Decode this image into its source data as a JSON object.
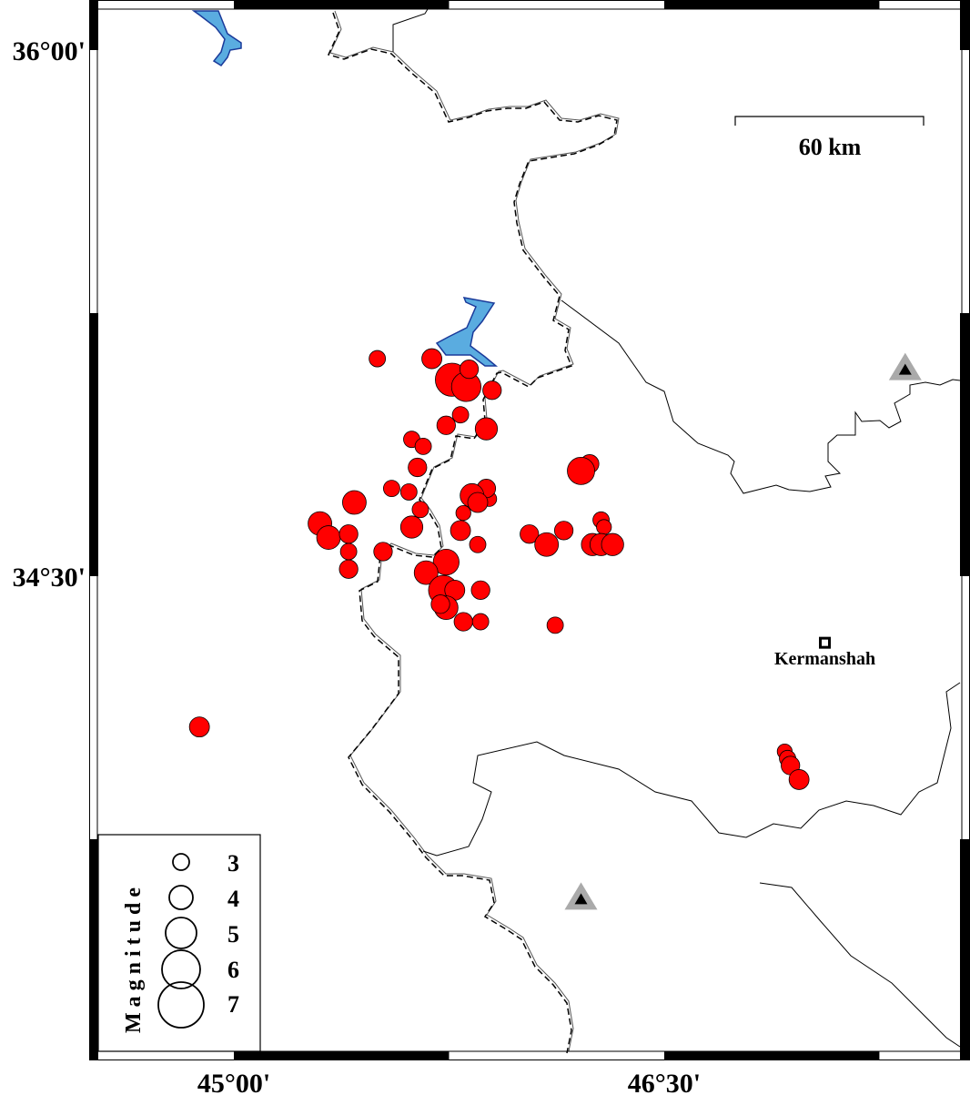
{
  "map": {
    "extent": {
      "lon_min": 44.68,
      "lon_max": 47.73,
      "lat_min": 33.25,
      "lat_max": 36.14
    },
    "lon_ticks": [
      {
        "value": 45.0,
        "label": "45°00'"
      },
      {
        "value": 46.5,
        "label": "46°30'"
      }
    ],
    "lat_ticks": [
      {
        "value": 36.0,
        "label": "36°00'"
      },
      {
        "value": 34.5,
        "label": "34°30'"
      }
    ],
    "colors": {
      "event_fill": "#ff0000",
      "water_fill": "#5aace0",
      "water_edge": "#1a3a9a",
      "station_halo": "#aaaaaa",
      "station": "#000000"
    }
  },
  "scale_bar": {
    "label": "60 km",
    "length_km": 60
  },
  "cities": [
    {
      "name": "Kermanshah",
      "lon": 47.06,
      "lat": 34.31,
      "icon": "square-marker-icon"
    }
  ],
  "stations": [
    {
      "lon": 47.34,
      "lat": 35.09,
      "icon": "triangle-station-icon"
    },
    {
      "lon": 46.21,
      "lat": 33.58,
      "icon": "triangle-station-icon"
    }
  ],
  "legend": {
    "title": "Magnitude",
    "levels": [
      {
        "mag": 3,
        "label": "3"
      },
      {
        "mag": 4,
        "label": "4"
      },
      {
        "mag": 5,
        "label": "5"
      },
      {
        "mag": 6,
        "label": "6"
      },
      {
        "mag": 7,
        "label": "7"
      }
    ]
  },
  "events": [
    [
      45.5,
      35.12,
      3.0
    ],
    [
      45.69,
      35.12,
      3.5
    ],
    [
      45.76,
      35.06,
      5.3
    ],
    [
      45.81,
      35.04,
      4.8
    ],
    [
      45.82,
      35.09,
      3.3
    ],
    [
      45.9,
      35.03,
      3.3
    ],
    [
      45.79,
      34.96,
      3.0
    ],
    [
      45.74,
      34.93,
      3.3
    ],
    [
      45.88,
      34.92,
      3.8
    ],
    [
      45.62,
      34.89,
      3.0
    ],
    [
      45.66,
      34.87,
      3.0
    ],
    [
      45.64,
      34.81,
      3.3
    ],
    [
      46.24,
      34.82,
      3.3
    ],
    [
      46.21,
      34.8,
      4.5
    ],
    [
      45.55,
      34.75,
      3.0
    ],
    [
      45.61,
      34.74,
      3.0
    ],
    [
      45.42,
      34.71,
      4.0
    ],
    [
      45.89,
      34.72,
      2.8
    ],
    [
      45.88,
      34.75,
      3.3
    ],
    [
      45.83,
      34.73,
      4.0
    ],
    [
      45.85,
      34.71,
      3.5
    ],
    [
      45.65,
      34.69,
      3.0
    ],
    [
      45.3,
      34.65,
      4.0
    ],
    [
      45.33,
      34.61,
      4.0
    ],
    [
      45.4,
      34.62,
      3.3
    ],
    [
      45.8,
      34.68,
      2.8
    ],
    [
      45.62,
      34.64,
      3.8
    ],
    [
      45.79,
      34.63,
      3.5
    ],
    [
      45.85,
      34.59,
      3.0
    ],
    [
      45.4,
      34.57,
      3.0
    ],
    [
      45.4,
      34.52,
      3.3
    ],
    [
      45.52,
      34.57,
      3.3
    ],
    [
      45.74,
      34.54,
      4.3
    ],
    [
      45.67,
      34.51,
      4.0
    ],
    [
      45.73,
      34.46,
      4.8
    ],
    [
      45.77,
      34.46,
      3.5
    ],
    [
      45.74,
      34.41,
      4.0
    ],
    [
      45.72,
      34.42,
      3.3
    ],
    [
      45.8,
      34.37,
      3.3
    ],
    [
      45.86,
      34.37,
      3.0
    ],
    [
      45.86,
      34.46,
      3.3
    ],
    [
      46.12,
      34.36,
      3.0
    ],
    [
      46.03,
      34.62,
      3.3
    ],
    [
      46.09,
      34.59,
      4.0
    ],
    [
      46.15,
      34.63,
      3.3
    ],
    [
      46.28,
      34.66,
      3.0
    ],
    [
      46.29,
      34.64,
      2.8
    ],
    [
      46.25,
      34.59,
      3.8
    ],
    [
      46.28,
      34.59,
      3.8
    ],
    [
      46.32,
      34.59,
      3.8
    ],
    [
      44.88,
      34.07,
      3.5
    ],
    [
      46.92,
      34.0,
      2.8
    ],
    [
      46.93,
      33.98,
      3.0
    ],
    [
      46.94,
      33.96,
      3.3
    ],
    [
      46.97,
      33.92,
      3.5
    ]
  ]
}
